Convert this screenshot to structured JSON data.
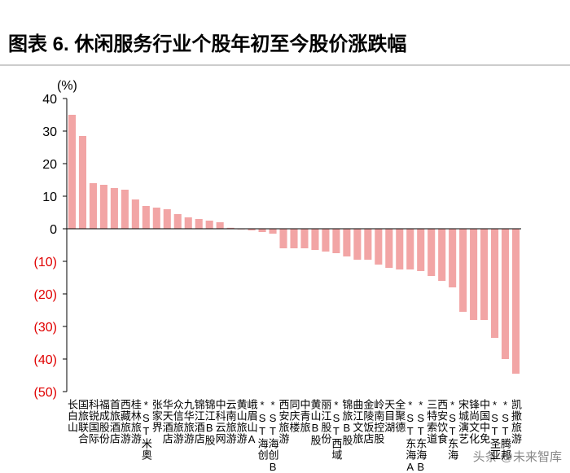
{
  "chart_data": {
    "type": "bar",
    "title": "图表 6. 休闲服务行业个股年初至今股价涨跌幅",
    "y_label": "(%)",
    "watermark": "头条 @未来智库",
    "color": "#f2a5a5",
    "tick_color": "#000000",
    "negative_tick_color": "#e00000",
    "categories": [
      "长白山",
      "国旅联合",
      "科锐国际",
      "福成股份",
      "首旅酒店",
      "西藏旅游",
      "桂林旅游",
      "*ST米奥",
      "张家界",
      "华天酒店",
      "众信旅游",
      "九华旅游",
      "锦江酒店",
      "锦江B股",
      "中科云网",
      "云南旅游",
      "黄山旅游",
      "峨眉山A",
      "*ST海创",
      "*ST海创B",
      "西安旅游",
      "同庆楼",
      "中青旅",
      "黄山B股",
      "丽江股份",
      "*ST西域",
      "锦旅B股",
      "曲江文旅",
      "金陵饭店",
      "岭南控股",
      "天目湖",
      "全聚德",
      "*ST东海A",
      "*ST东海B",
      "三特索道",
      "西安饮食",
      "*ST东海",
      "宋城演艺",
      "锋尚文化",
      "中国中免",
      "*ST圣亚",
      "*ST腾邦",
      "凯撒旅游"
    ],
    "values": [
      35,
      28.5,
      14,
      13.5,
      12.5,
      12,
      9,
      7,
      6.5,
      6,
      4.5,
      3.5,
      3,
      2.5,
      2,
      0.3,
      -0.2,
      -0.5,
      -1,
      -1.5,
      -6,
      -6,
      -6,
      -6.5,
      -7,
      -7.5,
      -8.5,
      -9.5,
      -9.5,
      -11,
      -12,
      -12.5,
      -12.5,
      -13,
      -14.5,
      -16,
      -18,
      -25.5,
      -28,
      -28,
      -33.5,
      -40,
      -44.5
    ],
    "ylim": [
      -50,
      40
    ],
    "yticks": [
      40,
      30,
      20,
      10,
      0,
      {
        "value": -10,
        "label": "(10)"
      },
      {
        "value": -20,
        "label": "(20)"
      },
      {
        "value": -30,
        "label": "(30)"
      },
      {
        "value": -40,
        "label": "(40)"
      },
      {
        "value": -50,
        "label": "(50)"
      }
    ]
  }
}
